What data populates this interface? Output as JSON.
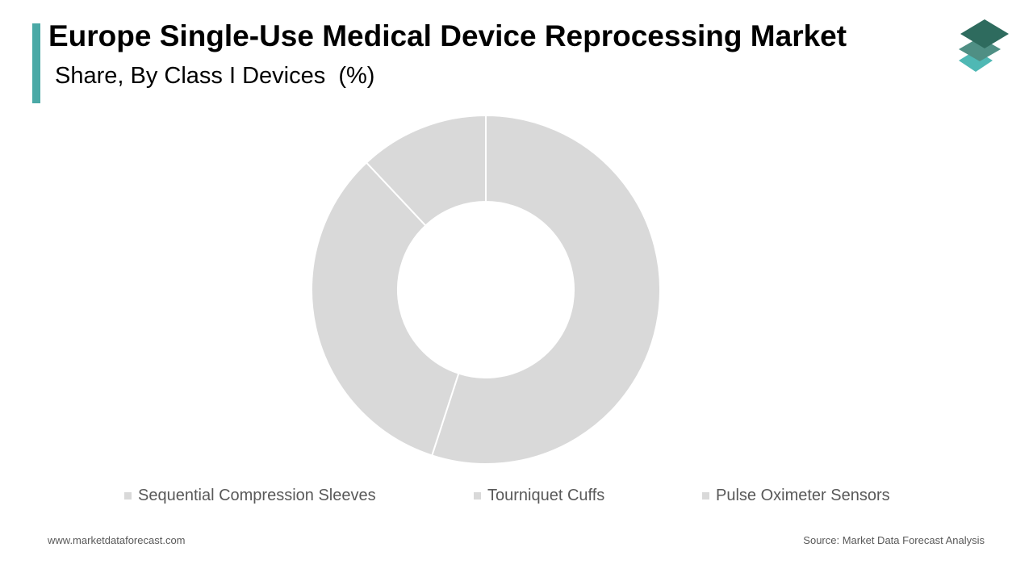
{
  "header": {
    "title": "Europe Single-Use Medical Device Reprocessing Market",
    "subtitle": "Share, By Class I Devices  (%)",
    "accent_color": "#4aa9a6"
  },
  "logo": {
    "icon": "stacked-layers-logo-icon",
    "colors": [
      "#2e6b5e",
      "#4f8f84",
      "#4fb8b4"
    ]
  },
  "chart_data": {
    "type": "pie",
    "donut": true,
    "title": "Europe Single-Use Medical Device Reprocessing Market",
    "subtitle": "Share, By Class I Devices  (%)",
    "categories": [
      "Sequential Compression Sleeves",
      "Tourniquet Cuffs",
      "Pulse Oximeter Sensors"
    ],
    "values": [
      55,
      33,
      12
    ],
    "colors": [
      "#d9d9d9",
      "#d9d9d9",
      "#d9d9d9"
    ],
    "slice_border_color": "#ffffff",
    "legend_position": "bottom"
  },
  "legend": {
    "items": [
      "Sequential Compression Sleeves",
      "Tourniquet Cuffs",
      "Pulse Oximeter Sensors"
    ],
    "swatch_color": "#d9d9d9",
    "text_color": "#595959"
  },
  "footer": {
    "website": "www.marketdataforecast.com",
    "source": "Source: Market Data Forecast Analysis"
  }
}
